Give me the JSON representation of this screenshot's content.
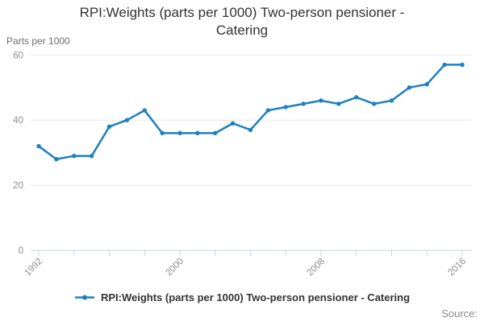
{
  "header": {
    "title": "RPI:Weights (parts per 1000) Two-person pensioner - Catering"
  },
  "chart_data": {
    "type": "line",
    "title": "RPI:Weights (parts per 1000) Two-person pensioner - Catering",
    "y_axis_title": "Parts per 1000",
    "xlabel": "",
    "ylabel": "Parts per 1000",
    "x": [
      1992,
      1993,
      1994,
      1995,
      1996,
      1997,
      1998,
      1999,
      2000,
      2001,
      2002,
      2003,
      2004,
      2005,
      2006,
      2007,
      2008,
      2009,
      2010,
      2011,
      2012,
      2013,
      2014,
      2015,
      2016
    ],
    "series": [
      {
        "name": "RPI:Weights (parts per 1000) Two-person pensioner - Catering",
        "values": [
          32,
          28,
          29,
          29,
          38,
          40,
          43,
          36,
          36,
          36,
          36,
          39,
          37,
          43,
          44,
          45,
          46,
          45,
          47,
          45,
          46,
          50,
          51,
          57,
          57
        ]
      }
    ],
    "ylim": [
      0,
      60
    ],
    "y_ticks": [
      0,
      20,
      40,
      60
    ],
    "x_ticks": [
      1992,
      1994,
      1996,
      1998,
      2000,
      2002,
      2004,
      2006,
      2008,
      2010,
      2012,
      2014,
      2016
    ],
    "x_tick_labels": [
      1992,
      2000,
      2008,
      2016
    ],
    "grid": "horizontal",
    "legend_position": "bottom",
    "line_color": "#1e7fc2",
    "grid_color": "#e6e6e6",
    "axis_color": "#c9d3dc",
    "tick_label_color": "#8c8c8c"
  },
  "legend": {
    "label": "RPI:Weights (parts per 1000) Two-person pensioner - Catering"
  },
  "footer": {
    "source_label": "Source:"
  }
}
